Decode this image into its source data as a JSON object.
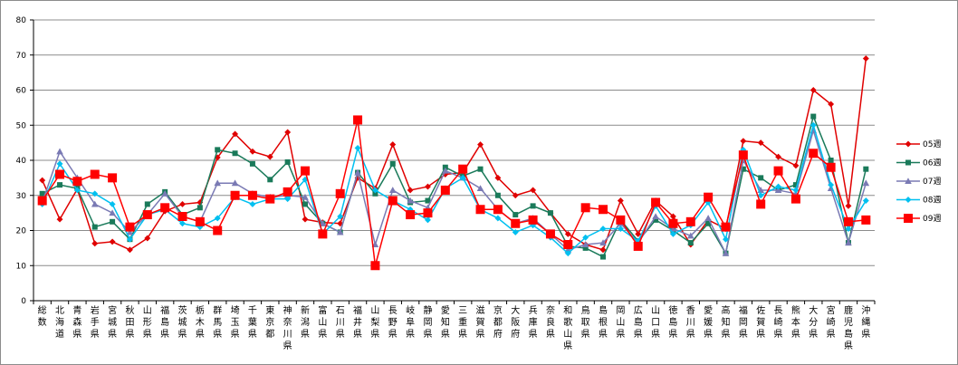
{
  "chart_data": {
    "type": "line",
    "title": "",
    "xlabel": "",
    "ylabel": "",
    "ylim": [
      0,
      80
    ],
    "yticks": [
      0,
      10,
      20,
      30,
      40,
      50,
      60,
      70,
      80
    ],
    "grid": "horizontal",
    "legend_position": "right",
    "categories": [
      "総数",
      "北海道",
      "青森県",
      "岩手県",
      "宮城県",
      "秋田県",
      "山形県",
      "福島県",
      "茨城県",
      "栃木県",
      "群馬県",
      "埼玉県",
      "千葉県",
      "東京都",
      "神奈川県",
      "新潟県",
      "富山県",
      "石川県",
      "福井県",
      "山梨県",
      "長野県",
      "岐阜県",
      "静岡県",
      "愛知県",
      "三重県",
      "滋賀県",
      "京都府",
      "大阪府",
      "兵庫県",
      "奈良県",
      "和歌山県",
      "鳥取県",
      "島根県",
      "岡山県",
      "広島県",
      "山口県",
      "徳島県",
      "香川県",
      "愛媛県",
      "高知県",
      "福岡県",
      "佐賀県",
      "長崎県",
      "熊本県",
      "大分県",
      "宮崎県",
      "鹿児島県",
      "沖縄県"
    ],
    "series": [
      {
        "name": "05週",
        "color": "#e00000",
        "marker": "diamond",
        "values": [
          34.3,
          23.2,
          31.8,
          16.3,
          16.8,
          14.5,
          17.8,
          25.5,
          27.5,
          28.0,
          40.8,
          47.5,
          42.5,
          41.0,
          48.0,
          23.2,
          22.3,
          22.0,
          35.0,
          32.0,
          44.5,
          31.5,
          32.5,
          36.0,
          36.5,
          44.5,
          35.0,
          30.0,
          31.5,
          25.0,
          19.0,
          16.0,
          14.5,
          28.5,
          19.0,
          28.5,
          24.0,
          16.0,
          23.0,
          20.5,
          45.5,
          45.0,
          41.0,
          38.5,
          60.0,
          56.0,
          27.0,
          69.0
        ]
      },
      {
        "name": "06週",
        "color": "#1a7a5a",
        "marker": "square",
        "values": [
          30.5,
          33.0,
          32.0,
          21.0,
          22.5,
          17.5,
          27.5,
          31.0,
          24.5,
          26.5,
          43.0,
          42.0,
          39.0,
          34.5,
          39.5,
          27.5,
          22.0,
          19.5,
          36.5,
          30.5,
          39.0,
          28.0,
          28.5,
          38.0,
          35.5,
          37.5,
          30.0,
          24.5,
          27.0,
          25.0,
          15.5,
          15.0,
          12.5,
          23.0,
          17.0,
          23.0,
          20.0,
          16.5,
          22.0,
          13.5,
          37.5,
          35.0,
          31.5,
          33.0,
          52.5,
          40.0,
          16.5,
          37.5
        ]
      },
      {
        "name": "07週",
        "color": "#7a7ab4",
        "marker": "triangle",
        "values": [
          28.0,
          42.5,
          35.0,
          27.5,
          25.0,
          19.5,
          24.5,
          30.5,
          24.0,
          22.5,
          33.5,
          33.5,
          30.5,
          29.5,
          30.0,
          29.5,
          22.0,
          19.5,
          36.5,
          16.0,
          31.5,
          28.5,
          26.5,
          37.0,
          35.0,
          32.0,
          26.0,
          22.0,
          23.5,
          19.0,
          14.5,
          16.0,
          16.5,
          22.0,
          16.5,
          24.0,
          20.5,
          18.5,
          23.5,
          13.5,
          40.0,
          31.5,
          31.5,
          30.5,
          48.5,
          32.0,
          16.5,
          33.5
        ]
      },
      {
        "name": "08週",
        "color": "#00c0f0",
        "marker": "diamond",
        "values": [
          27.5,
          39.0,
          31.5,
          30.5,
          27.5,
          17.5,
          24.5,
          26.0,
          22.0,
          21.0,
          23.5,
          29.5,
          27.5,
          29.0,
          29.0,
          34.5,
          19.0,
          24.0,
          43.5,
          31.5,
          28.5,
          26.0,
          23.0,
          32.0,
          35.0,
          26.0,
          23.5,
          19.5,
          21.5,
          18.0,
          13.5,
          18.0,
          20.5,
          20.5,
          17.0,
          27.0,
          19.0,
          21.5,
          28.0,
          17.5,
          43.0,
          30.0,
          32.5,
          31.5,
          50.0,
          33.0,
          20.5,
          28.5
        ]
      },
      {
        "name": "09週",
        "color": "#ff0000",
        "marker": "square-large",
        "values": [
          28.5,
          36.0,
          34.0,
          36.0,
          35.0,
          21.0,
          24.5,
          26.5,
          24.0,
          22.5,
          20.0,
          30.0,
          30.0,
          29.0,
          31.0,
          37.0,
          19.0,
          30.5,
          51.5,
          10.0,
          28.5,
          24.5,
          25.0,
          31.5,
          37.5,
          26.0,
          26.0,
          22.0,
          23.0,
          19.0,
          16.0,
          26.5,
          26.0,
          23.0,
          15.5,
          28.0,
          22.0,
          22.5,
          29.5,
          21.0,
          41.5,
          27.5,
          37.0,
          29.0,
          42.0,
          38.0,
          22.5,
          23.0
        ]
      }
    ]
  }
}
